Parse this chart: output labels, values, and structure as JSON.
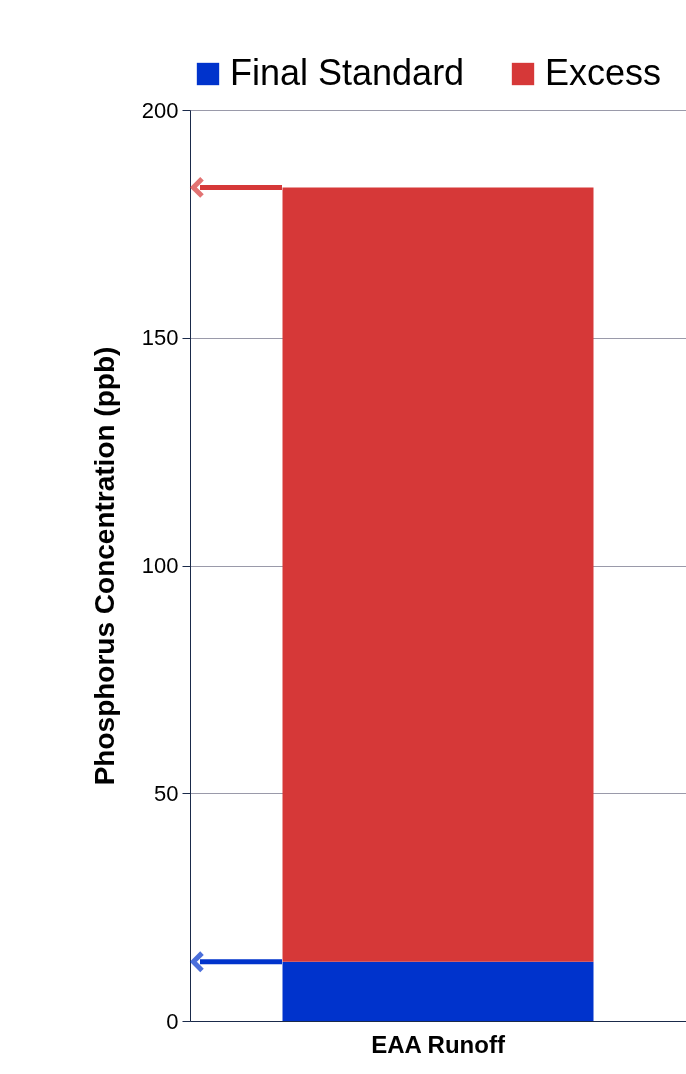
{
  "chart_data": {
    "type": "bar",
    "stacked": true,
    "ylabel": "Phosphorus Concentration (ppb)",
    "categories": [
      "EAA Runoff"
    ],
    "series": [
      {
        "name": "Final Standard",
        "color": "#0033cc",
        "values": [
          13
        ]
      },
      {
        "name": "Excess",
        "color": "#d63838",
        "values": [
          170
        ]
      }
    ],
    "ylim": [
      0,
      200
    ],
    "yticks": [
      0,
      50,
      100,
      150,
      200
    ],
    "grid": "y",
    "legend": "top"
  }
}
